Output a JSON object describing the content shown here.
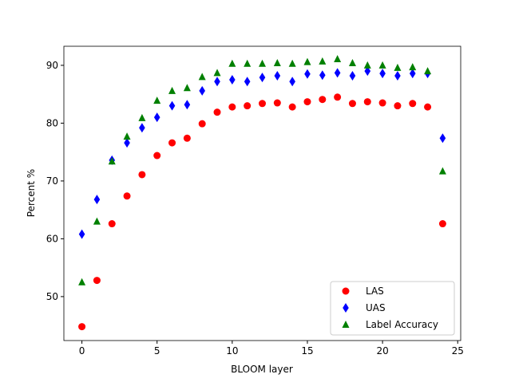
{
  "chart_data": {
    "type": "scatter",
    "title": "",
    "xlabel": "BLOOM layer",
    "ylabel": "Percent %",
    "xlim": [
      -1.2,
      25.2
    ],
    "ylim": [
      42.4,
      93.3
    ],
    "xticks": [
      0,
      5,
      10,
      15,
      20,
      25
    ],
    "yticks": [
      50,
      60,
      70,
      80,
      90
    ],
    "grid": false,
    "legend_position": "lower-right",
    "x": [
      0,
      1,
      2,
      3,
      4,
      5,
      6,
      7,
      8,
      9,
      10,
      11,
      12,
      13,
      14,
      15,
      16,
      17,
      18,
      19,
      20,
      21,
      22,
      23,
      24
    ],
    "series": [
      {
        "name": "LAS",
        "color": "#ff0000",
        "marker": "circle",
        "values": [
          44.8,
          52.8,
          62.6,
          67.4,
          71.1,
          74.4,
          76.6,
          77.4,
          79.9,
          81.9,
          82.8,
          83.0,
          83.4,
          83.5,
          82.8,
          83.7,
          84.1,
          84.5,
          83.4,
          83.7,
          83.5,
          83.0,
          83.4,
          82.8,
          62.6
        ]
      },
      {
        "name": "UAS",
        "color": "#0000ff",
        "marker": "diamond",
        "values": [
          60.8,
          66.8,
          73.6,
          76.6,
          79.2,
          81.0,
          83.0,
          83.2,
          85.6,
          87.2,
          87.5,
          87.2,
          87.9,
          88.2,
          87.2,
          88.5,
          88.3,
          88.7,
          88.2,
          89.0,
          88.6,
          88.2,
          88.6,
          88.6,
          77.4
        ]
      },
      {
        "name": "Label Accuracy",
        "color": "#008000",
        "marker": "triangle",
        "values": [
          52.5,
          63.0,
          73.4,
          77.7,
          80.9,
          83.9,
          85.6,
          86.1,
          88.0,
          88.7,
          90.3,
          90.3,
          90.3,
          90.4,
          90.3,
          90.6,
          90.7,
          91.1,
          90.4,
          90.0,
          90.0,
          89.6,
          89.7,
          89.0,
          71.7
        ]
      }
    ]
  }
}
